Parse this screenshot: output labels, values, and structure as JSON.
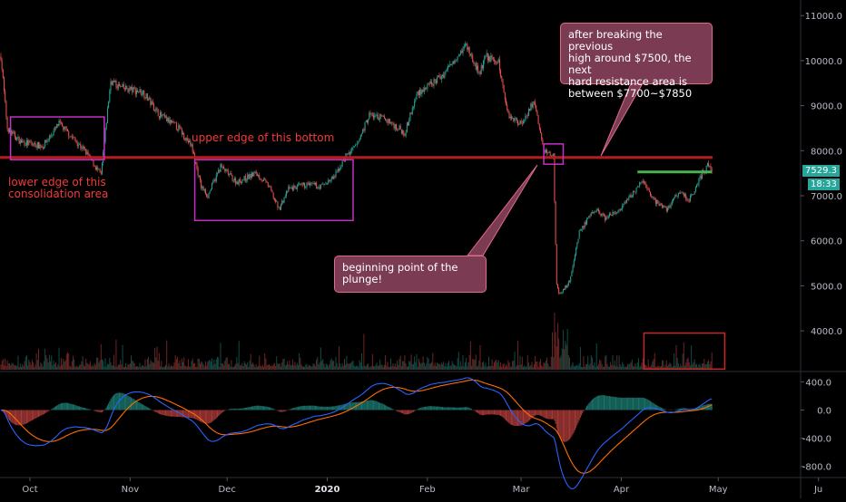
{
  "chart_data": {
    "type": "candlestick",
    "price_axis": {
      "ticks": [
        {
          "v": 11000,
          "label": "11000.0"
        },
        {
          "v": 10000,
          "label": "10000.0"
        },
        {
          "v": 9000,
          "label": "9000.0"
        },
        {
          "v": 8000,
          "label": "8000.0"
        },
        {
          "v": 7000,
          "label": "7000.0"
        },
        {
          "v": 6000,
          "label": "6000.0"
        },
        {
          "v": 5000,
          "label": "5000.0"
        },
        {
          "v": 4000,
          "label": "4000.0"
        }
      ]
    },
    "osc_axis": {
      "ticks": [
        {
          "v": 400,
          "label": "400.0"
        },
        {
          "v": 0,
          "label": "0.0"
        },
        {
          "v": -400,
          "label": "-400.0"
        },
        {
          "v": -800,
          "label": "-800.0"
        }
      ]
    },
    "time_axis": {
      "labels": [
        {
          "d": "2019-10-01",
          "label": "Oct",
          "bold": false
        },
        {
          "d": "2019-11-01",
          "label": "Nov",
          "bold": false
        },
        {
          "d": "2019-12-01",
          "label": "Dec",
          "bold": false
        },
        {
          "d": "2020-01-01",
          "label": "2020",
          "bold": true
        },
        {
          "d": "2020-02-01",
          "label": "Feb",
          "bold": false
        },
        {
          "d": "2020-03-01",
          "label": "Mar",
          "bold": false
        },
        {
          "d": "2020-04-01",
          "label": "Apr",
          "bold": false
        },
        {
          "d": "2020-05-01",
          "label": "May",
          "bold": false
        },
        {
          "d": "2020-06-01",
          "label": "Ju",
          "bold": false
        }
      ]
    },
    "price_anchors": [
      [
        "2019-09-22",
        10100
      ],
      [
        "2019-09-24",
        8500
      ],
      [
        "2019-09-28",
        8200
      ],
      [
        "2019-10-05",
        8100
      ],
      [
        "2019-10-10",
        8600
      ],
      [
        "2019-10-18",
        8000
      ],
      [
        "2019-10-23",
        7450
      ],
      [
        "2019-10-25",
        8900
      ],
      [
        "2019-10-26",
        9550
      ],
      [
        "2019-10-29",
        9400
      ],
      [
        "2019-11-05",
        9300
      ],
      [
        "2019-11-10",
        8800
      ],
      [
        "2019-11-16",
        8500
      ],
      [
        "2019-11-20",
        8100
      ],
      [
        "2019-11-23",
        7200
      ],
      [
        "2019-11-25",
        7000
      ],
      [
        "2019-11-29",
        7650
      ],
      [
        "2019-12-04",
        7300
      ],
      [
        "2019-12-10",
        7500
      ],
      [
        "2019-12-14",
        7200
      ],
      [
        "2019-12-17",
        6700
      ],
      [
        "2019-12-20",
        7150
      ],
      [
        "2019-12-26",
        7250
      ],
      [
        "2019-12-30",
        7200
      ],
      [
        "2020-01-03",
        7400
      ],
      [
        "2020-01-07",
        7900
      ],
      [
        "2020-01-10",
        8100
      ],
      [
        "2020-01-14",
        8800
      ],
      [
        "2020-01-19",
        8700
      ],
      [
        "2020-01-25",
        8400
      ],
      [
        "2020-01-29",
        9300
      ],
      [
        "2020-02-01",
        9400
      ],
      [
        "2020-02-06",
        9700
      ],
      [
        "2020-02-10",
        10100
      ],
      [
        "2020-02-13",
        10350
      ],
      [
        "2020-02-17",
        9700
      ],
      [
        "2020-02-19",
        10100
      ],
      [
        "2020-02-23",
        9950
      ],
      [
        "2020-02-26",
        8800
      ],
      [
        "2020-03-01",
        8600
      ],
      [
        "2020-03-05",
        9100
      ],
      [
        "2020-03-08",
        8000
      ],
      [
        "2020-03-11",
        7900
      ],
      [
        "2020-03-12",
        5000
      ],
      [
        "2020-03-13",
        4800
      ],
      [
        "2020-03-16",
        5100
      ],
      [
        "2020-03-19",
        6200
      ],
      [
        "2020-03-24",
        6700
      ],
      [
        "2020-03-27",
        6500
      ],
      [
        "2020-04-01",
        6700
      ],
      [
        "2020-04-06",
        7200
      ],
      [
        "2020-04-08",
        7300
      ],
      [
        "2020-04-11",
        6900
      ],
      [
        "2020-04-15",
        6700
      ],
      [
        "2020-04-19",
        7100
      ],
      [
        "2020-04-22",
        6900
      ],
      [
        "2020-04-26",
        7500
      ],
      [
        "2020-04-28",
        7700
      ],
      [
        "2020-04-29",
        7529.3
      ]
    ],
    "last_price": "7529.3",
    "countdown": "18:33",
    "resistance_level": 7850,
    "current_level": 7529.3
  },
  "annotations": {
    "upper_edge": "upper edge of this bottom",
    "lower_edge": "lower edge of this\nconsolidation area",
    "callout_top": "after breaking the previous\nhigh around $7500, the next\nhard resistance area is\nbetween $7700~$7850",
    "callout_mid": "beginning point of the\nplunge!"
  },
  "colors": {
    "bull": "#26a69a",
    "bear": "#ef5350",
    "line": "#b71c1c",
    "box": "#c62ec6",
    "macd": "#2962ff",
    "signal": "#ff6d00",
    "green_line": "#4caf50"
  }
}
